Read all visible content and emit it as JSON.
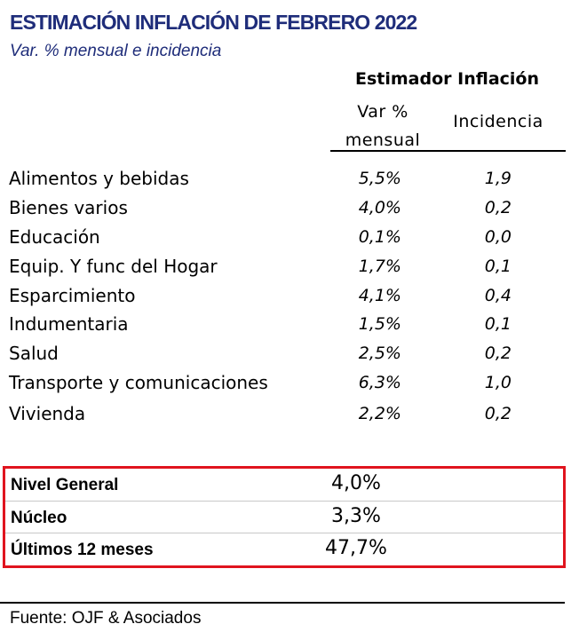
{
  "title": "ESTIMACIÓN INFLACIÓN DE FEBRERO 2022",
  "subtitle": "Var. % mensual e incidencia",
  "table": {
    "group_header": "Estimador Inflación",
    "col_var_line1": "Var %",
    "col_var_line2": "mensual",
    "col_inc": "Incidencia",
    "rows": [
      {
        "label": "Alimentos y bebidas",
        "var": "5,5%",
        "inc": "1,9"
      },
      {
        "label": "Bienes varios",
        "var": "4,0%",
        "inc": "0,2"
      },
      {
        "label": "Educación",
        "var": "0,1%",
        "inc": "0,0"
      },
      {
        "label": "Equip. Y func del Hogar",
        "var": "1,7%",
        "inc": "0,1"
      },
      {
        "label": "Esparcimiento",
        "var": "4,1%",
        "inc": "0,4"
      },
      {
        "label": "Indumentaria",
        "var": "1,5%",
        "inc": "0,1"
      },
      {
        "label": "Salud",
        "var": "2,5%",
        "inc": "0,2"
      },
      {
        "label": "Transporte y comunicaciones",
        "var": "6,3%",
        "inc": "1,0"
      },
      {
        "label": "Vivienda",
        "var": "2,2%",
        "inc": "0,2"
      }
    ]
  },
  "summary": [
    {
      "label": "Nivel General",
      "value": "4,0%"
    },
    {
      "label": "Núcleo",
      "value": "3,3%"
    },
    {
      "label": "Últimos 12 meses",
      "value": "47,7%"
    }
  ],
  "source": "Fuente: OJF & Asociados",
  "colors": {
    "title": "#1f2d7a",
    "highlight_border": "#e0141e"
  }
}
